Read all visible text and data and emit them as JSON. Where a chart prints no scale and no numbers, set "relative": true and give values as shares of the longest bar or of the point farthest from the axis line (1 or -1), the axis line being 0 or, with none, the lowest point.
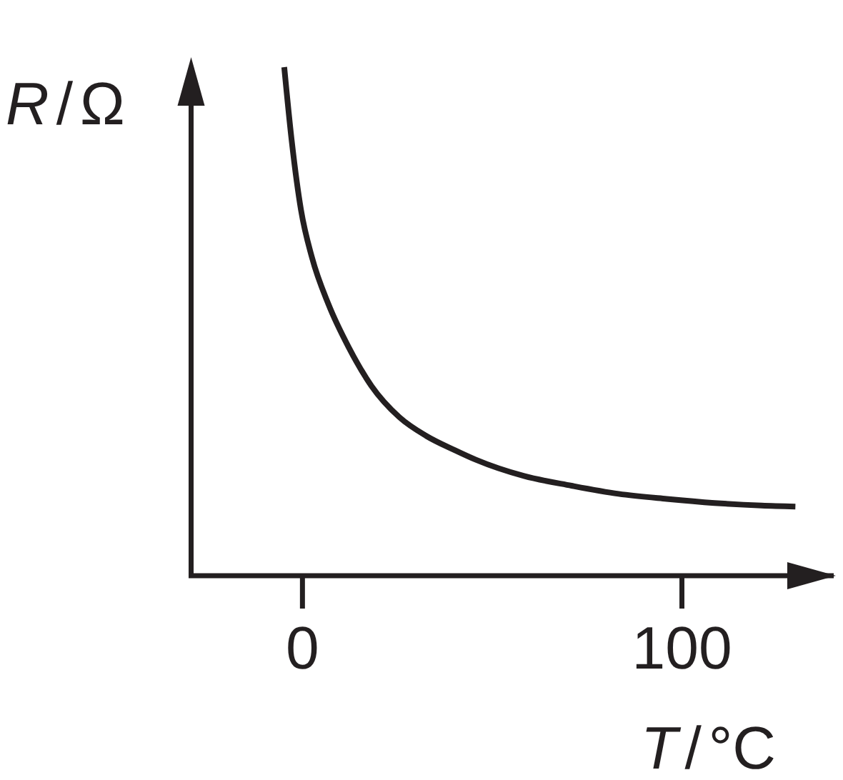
{
  "chart_data": {
    "type": "line",
    "xlabel": "T/°C",
    "ylabel": "R/Ω",
    "relative": true,
    "xlim": [
      -30,
      140
    ],
    "xticks": [
      0,
      100
    ],
    "color": "#231f20",
    "x": [
      -4.8,
      -2.9,
      -0.4,
      2.5,
      6.9,
      12.2,
      18.2,
      25.5,
      32.6,
      40.1,
      45.7,
      58.4,
      70.9,
      83.3,
      96,
      108.6,
      121,
      129.9
    ],
    "values": [
      1,
      0.86,
      0.72,
      0.626,
      0.533,
      0.449,
      0.373,
      0.312,
      0.275,
      0.247,
      0.228,
      0.196,
      0.177,
      0.161,
      0.151,
      0.143,
      0.138,
      0.136
    ]
  }
}
